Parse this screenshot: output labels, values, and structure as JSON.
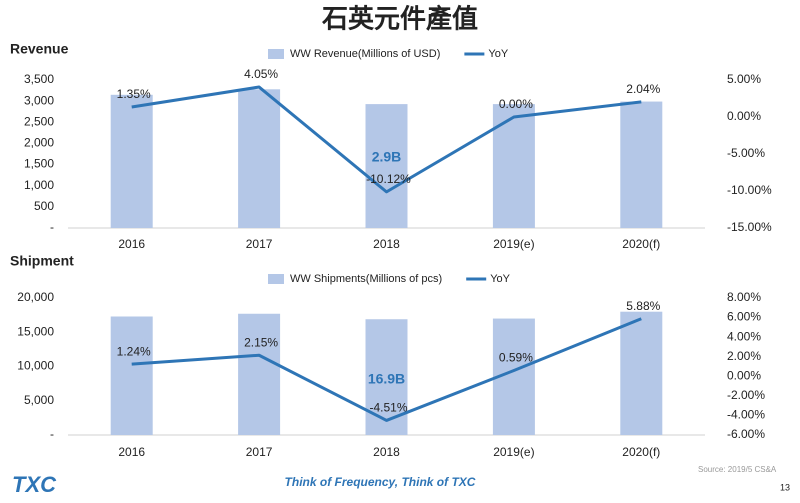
{
  "page": {
    "title": "石英元件產值",
    "logo": "TXC",
    "tagline": "Think of Frequency, Think of TXC",
    "source": "Source: 2019/5 CS&A",
    "page_number": "13"
  },
  "chart_data": [
    {
      "type": "combo",
      "title": "Revenue",
      "annotation": "2.9B",
      "categories": [
        "2016",
        "2017",
        "2018",
        "2019(e)",
        "2020(f)"
      ],
      "series": [
        {
          "name": "WW Revenue(Millions of USD)",
          "type": "bar",
          "color": "#b4c7e7",
          "values": [
            3150,
            3280,
            2930,
            2930,
            2990
          ]
        },
        {
          "name": "YoY",
          "type": "line",
          "axis": "y2",
          "color": "#2e75b6",
          "values": [
            1.35,
            4.05,
            -10.12,
            0.0,
            2.04
          ],
          "value_labels": [
            "1.35%",
            "4.05%",
            "-10.12%",
            "0.00%",
            "2.04%"
          ]
        }
      ],
      "ylim": [
        0,
        3500
      ],
      "yticks": [
        {
          "value": 0,
          "label": "-"
        },
        500,
        {
          "value": 1000,
          "label": "1,000"
        },
        {
          "value": 1500,
          "label": "1,500"
        },
        {
          "value": 2000,
          "label": "2,000"
        },
        {
          "value": 2500,
          "label": "2,500"
        },
        {
          "value": 3000,
          "label": "3,000"
        },
        {
          "value": 3500,
          "label": "3,500"
        }
      ],
      "y2lim": [
        -15,
        5
      ],
      "y2ticks": [
        {
          "value": -15,
          "label": "-15.00%"
        },
        {
          "value": -10,
          "label": "-10.00%"
        },
        {
          "value": -5,
          "label": "-5.00%"
        },
        {
          "value": 0,
          "label": "0.00%"
        },
        {
          "value": 5,
          "label": "5.00%"
        }
      ]
    },
    {
      "type": "combo",
      "title": "Shipment",
      "annotation": "16.9B",
      "categories": [
        "2016",
        "2017",
        "2018",
        "2019(e)",
        "2020(f)"
      ],
      "series": [
        {
          "name": "WW Shipments(Millions of pcs)",
          "type": "bar",
          "color": "#b4c7e7",
          "values": [
            17300,
            17700,
            16900,
            17000,
            18000
          ]
        },
        {
          "name": "YoY",
          "type": "line",
          "axis": "y2",
          "color": "#2e75b6",
          "values": [
            1.24,
            2.15,
            -4.51,
            0.59,
            5.88
          ],
          "value_labels": [
            "1.24%",
            "2.15%",
            "-4.51%",
            "0.59%",
            "5.88%"
          ]
        }
      ],
      "ylim": [
        0,
        20000
      ],
      "yticks": [
        {
          "value": 0,
          "label": "-"
        },
        {
          "value": 5000,
          "label": "5,000"
        },
        {
          "value": 10000,
          "label": "10,000"
        },
        {
          "value": 15000,
          "label": "15,000"
        },
        {
          "value": 20000,
          "label": "20,000"
        }
      ],
      "y2lim": [
        -6,
        8
      ],
      "y2ticks": [
        {
          "value": -6,
          "label": "-6.00%"
        },
        {
          "value": -4,
          "label": "-4.00%"
        },
        {
          "value": -2,
          "label": "-2.00%"
        },
        {
          "value": 0,
          "label": "0.00%"
        },
        {
          "value": 2,
          "label": "2.00%"
        },
        {
          "value": 4,
          "label": "4.00%"
        },
        {
          "value": 6,
          "label": "6.00%"
        },
        {
          "value": 8,
          "label": "8.00%"
        }
      ]
    }
  ]
}
